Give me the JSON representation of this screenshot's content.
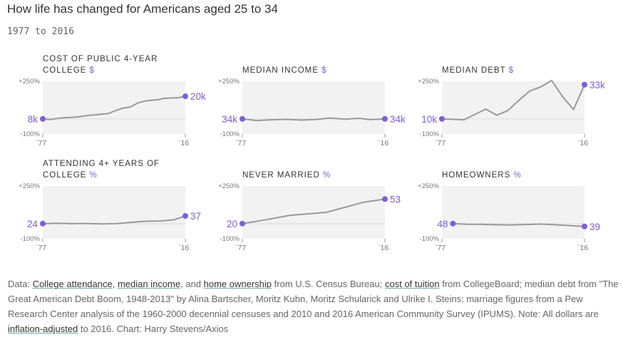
{
  "header": {
    "title": "How life has changed for Americans aged 25 to 34",
    "subtitle": "1977 to 2016"
  },
  "accent_color": "#7c5fd6",
  "line_color": "#999999",
  "chart_data": [
    {
      "type": "line",
      "title": "COST OF PUBLIC 4-YEAR COLLEGE",
      "unit": "$",
      "ylim": [
        -100,
        250
      ],
      "yticks": [
        "+250%",
        "-100%"
      ],
      "xticks": [
        "`77",
        "`16"
      ],
      "start_label": "8k",
      "end_label": "20k",
      "series": [
        {
          "x": [
            1977,
            1979,
            1981,
            1983,
            1985,
            1987,
            1989,
            1991,
            1993,
            1995,
            1997,
            1999,
            2001,
            2003,
            2005,
            2007,
            2009,
            2010,
            2012,
            2014,
            2016
          ],
          "y": [
            0,
            -4,
            3,
            8,
            10,
            14,
            22,
            26,
            31,
            36,
            56,
            72,
            79,
            106,
            119,
            124,
            129,
            136,
            139,
            140,
            150
          ]
        }
      ]
    },
    {
      "type": "line",
      "title": "MEDIAN INCOME",
      "unit": "$",
      "ylim": [
        -100,
        250
      ],
      "yticks": [
        "+250%",
        "-100%"
      ],
      "xticks": [
        "`77",
        "`16"
      ],
      "start_label": "34k",
      "end_label": "34k",
      "series": [
        {
          "x": [
            1977,
            1981,
            1985,
            1989,
            1993,
            1997,
            2001,
            2005,
            2009,
            2012,
            2016
          ],
          "y": [
            0,
            -11,
            -6,
            -3,
            -8,
            -4,
            6,
            -2,
            4,
            -5,
            0
          ]
        }
      ]
    },
    {
      "type": "line",
      "title": "MEDIAN DEBT",
      "unit": "$",
      "ylim": [
        -100,
        250
      ],
      "yticks": [
        "+250%",
        "-100%"
      ],
      "xticks": [
        "`77",
        "`16"
      ],
      "start_label": "10k",
      "end_label": "33k",
      "series": [
        {
          "x": [
            1977,
            1983,
            1989,
            1992,
            1995,
            1998,
            2001,
            2004,
            2007,
            2010,
            2013,
            2016
          ],
          "y": [
            0,
            -6,
            65,
            24,
            55,
            122,
            185,
            212,
            255,
            148,
            62,
            227
          ]
        }
      ]
    },
    {
      "type": "line",
      "title": "ATTENDING 4+ YEARS OF COLLEGE",
      "unit": "%",
      "ylim": [
        -100,
        250
      ],
      "yticks": [
        "+250%",
        "-100%"
      ],
      "xticks": [
        "`77",
        "`16"
      ],
      "start_label": "24",
      "end_label": "37",
      "series": [
        {
          "x": [
            1977,
            1981,
            1985,
            1989,
            1993,
            1997,
            2001,
            2005,
            2009,
            2013,
            2016
          ],
          "y": [
            0,
            2,
            0,
            1,
            -2,
            0,
            8,
            16,
            17,
            26,
            51
          ]
        }
      ]
    },
    {
      "type": "line",
      "title": "NEVER MARRIED",
      "unit": "%",
      "ylim": [
        -100,
        250
      ],
      "yticks": [
        "+250%",
        "-100%"
      ],
      "xticks": [
        "`77",
        "`16"
      ],
      "start_label": "20",
      "end_label": "53",
      "series": [
        {
          "x": [
            1977,
            1984,
            1990,
            2000,
            2010,
            2016
          ],
          "y": [
            0,
            28,
            55,
            75,
            141,
            163
          ]
        }
      ]
    },
    {
      "type": "line",
      "title": "HOMEOWNERS",
      "unit": "%",
      "ylim": [
        -100,
        250
      ],
      "yticks": [
        "+250%",
        "-100%"
      ],
      "xticks": [
        "`77",
        "`16"
      ],
      "start_label": "48",
      "end_label": "39",
      "series": [
        {
          "x": [
            1980,
            1984,
            1988,
            1992,
            1996,
            2000,
            2004,
            2008,
            2012,
            2016
          ],
          "y": [
            0,
            -4,
            -5,
            -8,
            -9,
            -6,
            -3,
            -8,
            -13,
            -19
          ]
        }
      ]
    }
  ],
  "footer": {
    "p1": "Data: ",
    "l1": "College attendance",
    "p2": ", ",
    "l2": "median income",
    "p3": ", and ",
    "l3": "home ownership",
    "p4": " from U.S. Census Bureau; ",
    "l4": "cost of tuition",
    "p5": " from CollegeBoard; median debt from \"The Great American Debt Boom, 1948-2013\" by Alina Bartscher, Moritz Kuhn, Moritz Schularick and Ulrike I. Steins; marriage figures from a Pew Research Center analysis of the 1960-2000 decennial censuses and 2010 and 2016 American Community Survey (IPUMS). Note: All dollars are ",
    "l5": "inflation-adjusted",
    "p6": " to 2016. Chart: Harry Stevens/Axios"
  }
}
